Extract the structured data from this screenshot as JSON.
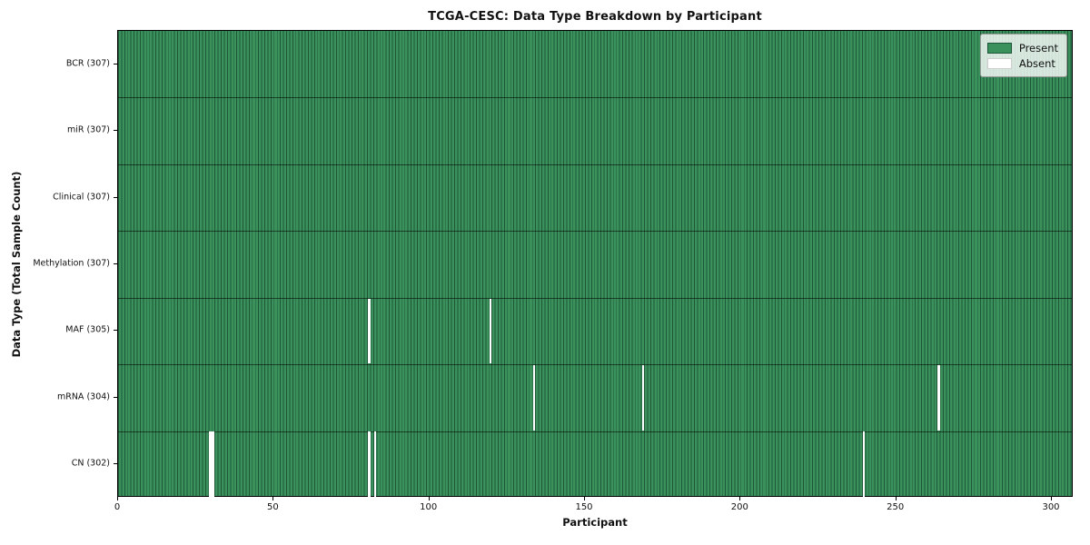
{
  "chart_data": {
    "type": "heatmap",
    "title": "TCGA-CESC: Data Type Breakdown by Participant",
    "xlabel": "Participant",
    "ylabel": "Data Type (Total Sample Count)",
    "n_participants": 307,
    "x_ticks": [
      0,
      50,
      100,
      150,
      200,
      250,
      300
    ],
    "grid": false,
    "legend_position": "upper right",
    "legend": [
      {
        "label": "Present",
        "key": "present"
      },
      {
        "label": "Absent",
        "key": "absent"
      }
    ],
    "colors": {
      "present_fill": "#3a915c",
      "cell_edge": "#1d5737",
      "absent_fill": "#fdfdfd",
      "row_separator": "rgba(0,0,0,0.55)"
    },
    "rows": [
      {
        "label": "BCR (307)",
        "data_type": "BCR",
        "total_samples": 307,
        "absent_participants": []
      },
      {
        "label": "miR (307)",
        "data_type": "miR",
        "total_samples": 307,
        "absent_participants": []
      },
      {
        "label": "Clinical (307)",
        "data_type": "Clinical",
        "total_samples": 307,
        "absent_participants": []
      },
      {
        "label": "Methylation (307)",
        "data_type": "Methylation",
        "total_samples": 307,
        "absent_participants": []
      },
      {
        "label": "MAF (305)",
        "data_type": "MAF",
        "total_samples": 305,
        "absent_participants": [
          80,
          119
        ]
      },
      {
        "label": "mRNA (304)",
        "data_type": "mRNA",
        "total_samples": 304,
        "absent_participants": [
          133,
          168,
          263
        ]
      },
      {
        "label": "CN (302)",
        "data_type": "CN",
        "total_samples": 302,
        "absent_participants": [
          29,
          30,
          80,
          82,
          239
        ]
      }
    ]
  }
}
